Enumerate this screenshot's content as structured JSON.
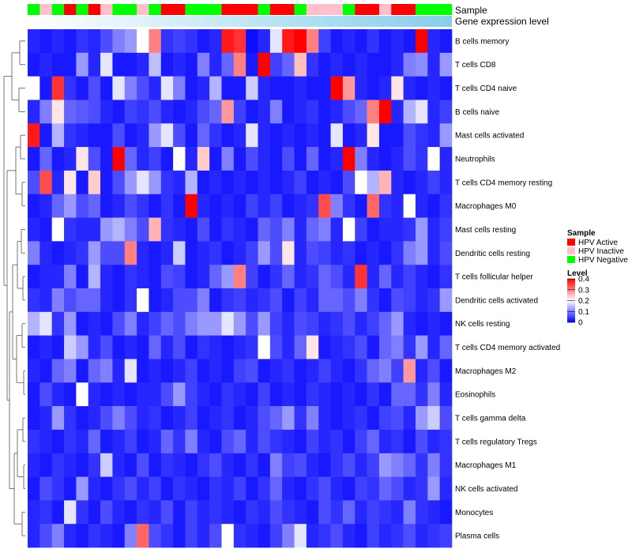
{
  "chart_data": {
    "type": "heatmap",
    "title": "",
    "annotation_tracks": [
      {
        "name": "Sample",
        "label": "Sample"
      },
      {
        "name": "Gene expression level",
        "label": "Gene expression level"
      }
    ],
    "sample_groups": [
      "HPV Active",
      "HPV Inactive",
      "HPV Negative"
    ],
    "sample_group_colors": {
      "HPV Active": "#ff0000",
      "HPV Inactive": "#ffc0cb",
      "HPV Negative": "#00ff00"
    },
    "sample_annotation": [
      "HPV Negative",
      "HPV Inactive",
      "HPV Negative",
      "HPV Active",
      "HPV Negative",
      "HPV Active",
      "HPV Inactive",
      "HPV Negative",
      "HPV Negative",
      "HPV Inactive",
      "HPV Negative",
      "HPV Active",
      "HPV Active",
      "HPV Negative",
      "HPV Negative",
      "HPV Negative",
      "HPV Active",
      "HPV Active",
      "HPV Active",
      "HPV Negative",
      "HPV Active",
      "HPV Active",
      "HPV Negative",
      "HPV Inactive",
      "HPV Inactive",
      "HPV Inactive",
      "HPV Negative",
      "HPV Active",
      "HPV Active",
      "HPV Inactive",
      "HPV Active",
      "HPV Active",
      "HPV Negative",
      "HPV Negative",
      "HPV Negative"
    ],
    "gene_expression_gradient": [
      "#ffffff",
      "#87ceeb"
    ],
    "rows": [
      "B cells memory",
      "T cells CD8",
      "T cells CD4 naive",
      "B cells naive",
      "Mast cells activated",
      "Neutrophils",
      "T cells CD4 memory resting",
      "Macrophages M0",
      "Mast cells resting",
      "Dendritic cells resting",
      "T cells follicular helper",
      "Dendritic cells activated",
      "NK cells resting",
      "T cells CD4 memory activated",
      "Macrophages M2",
      "Eosinophils",
      "T cells gamma delta",
      "T cells regulatory  Tregs",
      "Macrophages M1",
      "NK cells activated",
      "Monocytes",
      "Plasma cells"
    ],
    "values": [
      [
        0.03,
        0.02,
        0.03,
        0.02,
        0.04,
        0.03,
        0.06,
        0.1,
        0.12,
        0.2,
        0.3,
        0.04,
        0.05,
        0.04,
        0.02,
        0.03,
        0.38,
        0.36,
        0.01,
        0.03,
        0.18,
        0.38,
        0.42,
        0.3,
        0.05,
        0.02,
        0.03,
        0.02,
        0.04,
        0.02,
        0.03,
        0.02,
        0.4,
        0.03,
        0.02
      ],
      [
        0.02,
        0.03,
        0.02,
        0.02,
        0.12,
        0.03,
        0.18,
        0.02,
        0.02,
        0.03,
        0.15,
        0.02,
        0.03,
        0.02,
        0.1,
        0.03,
        0.08,
        0.3,
        0.02,
        0.4,
        0.05,
        0.08,
        0.25,
        0.04,
        0.02,
        0.03,
        0.02,
        0.03,
        0.02,
        0.02,
        0.03,
        0.1,
        0.11,
        0.03,
        0.12
      ],
      [
        0.2,
        0.02,
        0.36,
        0.04,
        0.02,
        0.06,
        0.02,
        0.18,
        0.1,
        0.06,
        0.03,
        0.18,
        0.1,
        0.02,
        0.03,
        0.14,
        0.02,
        0.02,
        0.16,
        0.03,
        0.02,
        0.02,
        0.03,
        0.02,
        0.02,
        0.4,
        0.28,
        0.03,
        0.02,
        0.03,
        0.22,
        0.03,
        0.02,
        0.03,
        0.02
      ],
      [
        0.03,
        0.1,
        0.22,
        0.08,
        0.07,
        0.06,
        0.03,
        0.02,
        0.05,
        0.04,
        0.06,
        0.03,
        0.02,
        0.03,
        0.06,
        0.08,
        0.28,
        0.05,
        0.02,
        0.03,
        0.1,
        0.02,
        0.03,
        0.04,
        0.02,
        0.03,
        0.06,
        0.08,
        0.3,
        0.4,
        0.03,
        0.14,
        0.18,
        0.03,
        0.05
      ],
      [
        0.38,
        0.02,
        0.14,
        0.04,
        0.03,
        0.02,
        0.02,
        0.06,
        0.02,
        0.03,
        0.12,
        0.18,
        0.06,
        0.02,
        0.08,
        0.04,
        0.02,
        0.03,
        0.18,
        0.03,
        0.02,
        0.03,
        0.02,
        0.03,
        0.02,
        0.18,
        0.02,
        0.03,
        0.22,
        0.02,
        0.02,
        0.06,
        0.04,
        0.03,
        0.12
      ],
      [
        0.02,
        0.08,
        0.02,
        0.03,
        0.22,
        0.06,
        0.02,
        0.4,
        0.08,
        0.03,
        0.05,
        0.02,
        0.2,
        0.03,
        0.24,
        0.02,
        0.1,
        0.02,
        0.06,
        0.03,
        0.02,
        0.06,
        0.02,
        0.08,
        0.02,
        0.03,
        0.4,
        0.1,
        0.03,
        0.02,
        0.03,
        0.06,
        0.04,
        0.2,
        0.03
      ],
      [
        0.06,
        0.34,
        0.03,
        0.22,
        0.02,
        0.24,
        0.02,
        0.06,
        0.12,
        0.18,
        0.12,
        0.04,
        0.03,
        0.14,
        0.02,
        0.03,
        0.02,
        0.03,
        0.02,
        0.03,
        0.02,
        0.03,
        0.05,
        0.02,
        0.03,
        0.02,
        0.06,
        0.2,
        0.14,
        0.26,
        0.03,
        0.02,
        0.03,
        0.05,
        0.03
      ],
      [
        0.02,
        0.03,
        0.08,
        0.12,
        0.06,
        0.08,
        0.02,
        0.03,
        0.06,
        0.04,
        0.02,
        0.04,
        0.02,
        0.4,
        0.03,
        0.02,
        0.03,
        0.02,
        0.05,
        0.03,
        0.05,
        0.02,
        0.03,
        0.04,
        0.34,
        0.1,
        0.04,
        0.02,
        0.32,
        0.04,
        0.03,
        0.2,
        0.03,
        0.02,
        0.04
      ],
      [
        0.03,
        0.02,
        0.2,
        0.04,
        0.03,
        0.03,
        0.12,
        0.14,
        0.1,
        0.06,
        0.26,
        0.04,
        0.03,
        0.02,
        0.06,
        0.02,
        0.04,
        0.03,
        0.02,
        0.08,
        0.06,
        0.1,
        0.03,
        0.08,
        0.1,
        0.03,
        0.2,
        0.05,
        0.02,
        0.03,
        0.03,
        0.04,
        0.12,
        0.03,
        0.05
      ],
      [
        0.1,
        0.03,
        0.02,
        0.03,
        0.04,
        0.12,
        0.06,
        0.06,
        0.3,
        0.03,
        0.02,
        0.03,
        0.16,
        0.02,
        0.03,
        0.04,
        0.02,
        0.03,
        0.05,
        0.12,
        0.06,
        0.22,
        0.03,
        0.06,
        0.05,
        0.03,
        0.04,
        0.02,
        0.03,
        0.02,
        0.04,
        0.1,
        0.12,
        0.03,
        0.06
      ],
      [
        0.02,
        0.03,
        0.03,
        0.1,
        0.02,
        0.14,
        0.03,
        0.02,
        0.04,
        0.03,
        0.02,
        0.06,
        0.05,
        0.02,
        0.03,
        0.08,
        0.12,
        0.3,
        0.05,
        0.02,
        0.04,
        0.08,
        0.03,
        0.04,
        0.08,
        0.06,
        0.03,
        0.36,
        0.03,
        0.08,
        0.03,
        0.05,
        0.03,
        0.02,
        0.04
      ],
      [
        0.04,
        0.03,
        0.1,
        0.06,
        0.08,
        0.08,
        0.03,
        0.02,
        0.04,
        0.2,
        0.02,
        0.03,
        0.06,
        0.06,
        0.1,
        0.02,
        0.04,
        0.05,
        0.03,
        0.04,
        0.06,
        0.02,
        0.05,
        0.03,
        0.08,
        0.08,
        0.06,
        0.1,
        0.04,
        0.02,
        0.06,
        0.05,
        0.03,
        0.04,
        0.12
      ],
      [
        0.14,
        0.18,
        0.04,
        0.12,
        0.02,
        0.03,
        0.02,
        0.06,
        0.1,
        0.03,
        0.05,
        0.08,
        0.06,
        0.1,
        0.12,
        0.12,
        0.18,
        0.12,
        0.06,
        0.12,
        0.05,
        0.03,
        0.06,
        0.05,
        0.03,
        0.04,
        0.06,
        0.03,
        0.05,
        0.08,
        0.12,
        0.03,
        0.02,
        0.03,
        0.02
      ],
      [
        0.02,
        0.03,
        0.02,
        0.16,
        0.12,
        0.03,
        0.06,
        0.02,
        0.03,
        0.02,
        0.08,
        0.03,
        0.06,
        0.02,
        0.04,
        0.03,
        0.02,
        0.03,
        0.04,
        0.2,
        0.06,
        0.03,
        0.08,
        0.22,
        0.02,
        0.03,
        0.04,
        0.06,
        0.02,
        0.08,
        0.1,
        0.04,
        0.12,
        0.03,
        0.08
      ],
      [
        0.03,
        0.02,
        0.08,
        0.1,
        0.02,
        0.08,
        0.1,
        0.03,
        0.18,
        0.02,
        0.03,
        0.02,
        0.03,
        0.05,
        0.02,
        0.03,
        0.02,
        0.05,
        0.06,
        0.02,
        0.03,
        0.04,
        0.02,
        0.03,
        0.05,
        0.03,
        0.02,
        0.04,
        0.08,
        0.1,
        0.05,
        0.28,
        0.03,
        0.06,
        0.02
      ],
      [
        0.02,
        0.06,
        0.03,
        0.02,
        0.2,
        0.03,
        0.02,
        0.03,
        0.02,
        0.03,
        0.03,
        0.06,
        0.12,
        0.05,
        0.03,
        0.02,
        0.04,
        0.03,
        0.02,
        0.05,
        0.02,
        0.03,
        0.02,
        0.04,
        0.03,
        0.02,
        0.03,
        0.02,
        0.04,
        0.02,
        0.08,
        0.08,
        0.04,
        0.1,
        0.03
      ],
      [
        0.02,
        0.03,
        0.12,
        0.04,
        0.02,
        0.03,
        0.06,
        0.1,
        0.06,
        0.03,
        0.04,
        0.02,
        0.03,
        0.05,
        0.02,
        0.03,
        0.04,
        0.02,
        0.03,
        0.06,
        0.08,
        0.12,
        0.04,
        0.1,
        0.03,
        0.02,
        0.03,
        0.04,
        0.02,
        0.05,
        0.06,
        0.03,
        0.12,
        0.16,
        0.06
      ],
      [
        0.04,
        0.03,
        0.02,
        0.04,
        0.03,
        0.08,
        0.02,
        0.03,
        0.05,
        0.02,
        0.03,
        0.08,
        0.04,
        0.1,
        0.03,
        0.02,
        0.06,
        0.08,
        0.03,
        0.06,
        0.04,
        0.03,
        0.02,
        0.05,
        0.03,
        0.04,
        0.02,
        0.05,
        0.08,
        0.03,
        0.04,
        0.02,
        0.06,
        0.03,
        0.04
      ],
      [
        0.03,
        0.02,
        0.04,
        0.03,
        0.02,
        0.04,
        0.16,
        0.03,
        0.02,
        0.06,
        0.02,
        0.04,
        0.03,
        0.02,
        0.04,
        0.06,
        0.03,
        0.02,
        0.04,
        0.02,
        0.1,
        0.05,
        0.06,
        0.03,
        0.02,
        0.04,
        0.06,
        0.03,
        0.05,
        0.12,
        0.1,
        0.08,
        0.04,
        0.1,
        0.04
      ],
      [
        0.02,
        0.06,
        0.04,
        0.02,
        0.12,
        0.03,
        0.02,
        0.04,
        0.06,
        0.03,
        0.05,
        0.02,
        0.04,
        0.03,
        0.02,
        0.04,
        0.03,
        0.05,
        0.02,
        0.04,
        0.08,
        0.03,
        0.02,
        0.04,
        0.06,
        0.03,
        0.02,
        0.05,
        0.04,
        0.08,
        0.06,
        0.03,
        0.04,
        0.12,
        0.03
      ],
      [
        0.03,
        0.04,
        0.02,
        0.18,
        0.04,
        0.02,
        0.06,
        0.03,
        0.02,
        0.04,
        0.03,
        0.06,
        0.02,
        0.05,
        0.03,
        0.04,
        0.03,
        0.02,
        0.04,
        0.03,
        0.06,
        0.04,
        0.03,
        0.02,
        0.06,
        0.04,
        0.08,
        0.03,
        0.05,
        0.04,
        0.03,
        0.1,
        0.04,
        0.03,
        0.02
      ],
      [
        0.03,
        0.06,
        0.1,
        0.03,
        0.02,
        0.04,
        0.03,
        0.02,
        0.1,
        0.32,
        0.06,
        0.04,
        0.02,
        0.05,
        0.03,
        0.06,
        0.2,
        0.04,
        0.03,
        0.02,
        0.05,
        0.1,
        0.18,
        0.03,
        0.04,
        0.06,
        0.03,
        0.02,
        0.05,
        0.03,
        0.04,
        0.06,
        0.03,
        0.04,
        0.05
      ]
    ],
    "color_scale": {
      "low": "#0000ff",
      "mid": "#ffffff",
      "high": "#ff0000",
      "min": 0,
      "mid_value": 0.2,
      "max": 0.4
    },
    "legend": {
      "sample_title": "Sample",
      "sample_items": [
        "HPV Active",
        "HPV Inactive",
        "HPV Negative"
      ],
      "level_title": "Level",
      "level_ticks": [
        0.4,
        0.3,
        0.2,
        0.1,
        0
      ],
      "level_tick_labels": [
        "0.4",
        "0.3",
        "0.2",
        "0.1",
        "0"
      ],
      "placement": "right"
    }
  }
}
